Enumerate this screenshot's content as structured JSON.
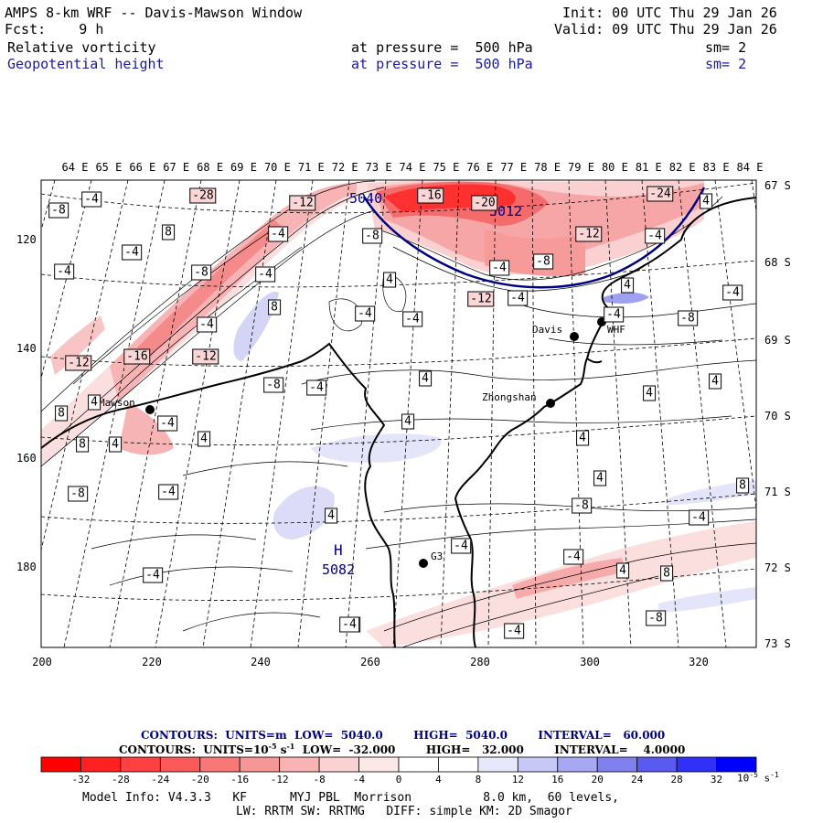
{
  "header": {
    "line1_left": "AMPS 8-km WRF -- Davis-Mawson Window",
    "line1_right": "Init: 00 UTC Thu 29 Jan 26",
    "line2_left": "Fcst:    9 h",
    "line2_right": "Valid: 09 UTC Thu 29 Jan 26",
    "field1_name": "Relative vorticity",
    "field1_level": "at pressure =  500 hPa",
    "field1_sm": "sm= 2",
    "field2_name": "Geopotential height",
    "field2_level": "at pressure =  500 hPa",
    "field2_sm": "sm= 2"
  },
  "map": {
    "lon_labels": [
      "64 E",
      "65 E",
      "66 E",
      "67 E",
      "68 E",
      "69 E",
      "70 E",
      "71 E",
      "72 E",
      "73 E",
      "74 E",
      "75 E",
      "76 E",
      "77 E",
      "78 E",
      "79 E",
      "80 E",
      "81 E",
      "82 E",
      "83 E",
      "84 E"
    ],
    "lat_labels": [
      "67 S",
      "68 S",
      "69 S",
      "70 S",
      "71 S",
      "72 S",
      "73 S"
    ],
    "y_grid_labels": [
      "120",
      "140",
      "160",
      "180"
    ],
    "x_grid_labels": [
      "200",
      "220",
      "240",
      "260",
      "280",
      "300",
      "320"
    ],
    "stations": [
      {
        "name": "Mawson"
      },
      {
        "name": "Davis"
      },
      {
        "name": "Zhongshan"
      },
      {
        "name": "WHF"
      },
      {
        "name": "G3"
      }
    ],
    "height_low_label": "5040",
    "height_low_label2": "5012",
    "high_marker": "H",
    "high_value": "5082",
    "vorticity_labels": [
      "-4",
      "-8",
      "-12",
      "-16",
      "-20",
      "-24",
      "-28",
      "4",
      "8",
      "-4",
      "-4",
      "-8",
      "-12",
      "-4",
      "-4",
      "-8",
      "-4",
      "-4",
      "-8",
      "-12",
      "-4",
      "4",
      "8",
      "-4",
      "-4",
      "4",
      "-4",
      "-4",
      "-8",
      "-16",
      "-12",
      "-12",
      "-4",
      "4",
      "4",
      "-8",
      "-4",
      "4",
      "4",
      "4",
      "8",
      "4",
      "-4",
      "4",
      "8",
      "4",
      "4",
      "-8",
      "-4",
      "8",
      "4",
      "-8",
      "-4",
      "-4",
      "4",
      "8",
      "4",
      "-4",
      "-8",
      "-4",
      "-4",
      "-4",
      "4",
      "-4"
    ],
    "colors": {
      "low_contour": "#000080",
      "neg_strong": "#ff0000",
      "pos_strong": "#0000ff"
    }
  },
  "legend": {
    "line1": "CONTOURS:  UNITS=m  LOW=  5040.0        HIGH=  5040.0        INTERVAL=   60.000",
    "line2_a": "CONTOURS:  UNITS=10",
    "line2_b": "-5",
    "line2_c": " s",
    "line2_d": "-1",
    "line2_e": "  LOW=  -32.000        HIGH=   32.000        INTERVAL=    4.0000",
    "colorbar_ticks": [
      "-32",
      "-28",
      "-24",
      "-20",
      "-16",
      "-12",
      "-8",
      "-4",
      "0",
      "4",
      "8",
      "12",
      "16",
      "20",
      "24",
      "28",
      "32"
    ],
    "units_a": "10",
    "units_b": "-5",
    "units_c": " s",
    "units_d": "-1",
    "colorbar_colors": [
      "#ff0000",
      "#ff3030",
      "#ff5050",
      "#fb7070",
      "#f89090",
      "#f6aaaa",
      "#f8c8c8",
      "#fbe4e4",
      "#ffffff",
      "#ffffff",
      "#e4e4fb",
      "#c4c4f6",
      "#a0a0f0",
      "#7878ee",
      "#5050f0",
      "#2828f8",
      "#0000ff"
    ]
  },
  "model_info": {
    "line1": "Model Info: V4.3.3   KF      MYJ PBL  Morrison          8.0 km,  60 levels,",
    "line2": "LW: RRTM SW: RRTMG   DIFF: simple KM: 2D Smagor"
  }
}
